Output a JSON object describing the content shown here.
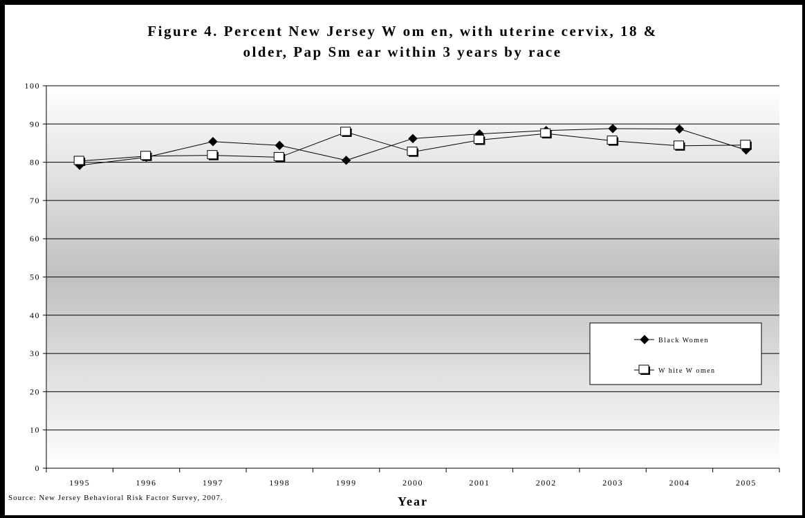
{
  "chart_data": {
    "type": "line",
    "title_line1": "Figure 4. Percent New Jersey W om en, with uterine cervix, 18 &",
    "title_line2": "older, Pap Sm ear within 3 years by race",
    "xlabel": "Year",
    "ylabel": "",
    "ylim": [
      0,
      100
    ],
    "yticks": [
      0,
      10,
      20,
      30,
      40,
      50,
      60,
      70,
      80,
      90,
      100
    ],
    "categories": [
      "1995",
      "1996",
      "1997",
      "1998",
      "1999",
      "2000",
      "2001",
      "2002",
      "2003",
      "2004",
      "2005"
    ],
    "series": [
      {
        "name": "Black Women",
        "marker": "diamond",
        "color": "#000000",
        "values": [
          79.2,
          81.3,
          85.4,
          84.4,
          80.5,
          86.2,
          87.4,
          88.3,
          88.8,
          88.7,
          83.2
        ]
      },
      {
        "name": "W hite W omen",
        "marker": "square",
        "color": "#000000",
        "values": [
          80.3,
          81.6,
          81.8,
          81.3,
          87.9,
          82.7,
          85.8,
          87.5,
          85.6,
          84.3,
          84.5
        ]
      }
    ],
    "grid": true,
    "legend_position": "lower-right",
    "source": "Source: New Jersey Behavioral Risk Factor Survey, 2007."
  }
}
